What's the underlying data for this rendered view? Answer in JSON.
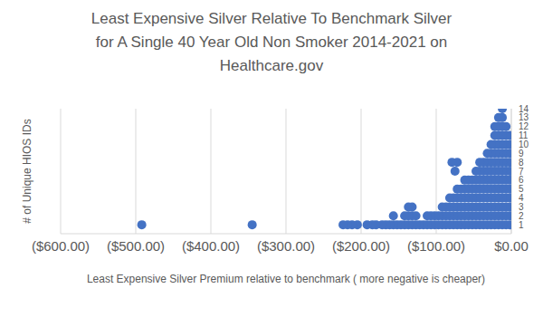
{
  "chart_data": {
    "type": "scatter",
    "title": "Least Expensive Silver Relative To Benchmark Silver for A Single 40 Year Old Non Smoker 2014-2021 on Healthcare.gov",
    "x_label": "Least Expensive Silver Premium relative to benchmark ( more negative is cheaper)",
    "y_label": "# of Unique HIOS IDs",
    "color": "#4472c4",
    "marker": "circle",
    "grid": true,
    "xlim": [
      -600,
      0
    ],
    "xticks": [
      {
        "value": -600,
        "label": "($600.00)"
      },
      {
        "value": -500,
        "label": "($500.00)"
      },
      {
        "value": -400,
        "label": "($400.00)"
      },
      {
        "value": -300,
        "label": "($300.00)"
      },
      {
        "value": -200,
        "label": "($200.00)"
      },
      {
        "value": -100,
        "label": "($100.00)"
      },
      {
        "value": 0,
        "label": "$0.00"
      }
    ],
    "ylim": [
      0,
      14
    ],
    "yticks": [
      1,
      2,
      3,
      4,
      5,
      6,
      7,
      8,
      9,
      10,
      11,
      12,
      13,
      14
    ],
    "x": [
      -2,
      -2,
      -2,
      -2,
      -2,
      -2,
      -2,
      -2,
      -2,
      -2,
      -2,
      -7,
      -7,
      -7,
      -7,
      -7,
      -7,
      -7,
      -7,
      -7,
      -7,
      -7,
      -7,
      -12,
      -12,
      -12,
      -12,
      -12,
      -12,
      -12,
      -12,
      -12,
      -12,
      -12,
      -12,
      -12,
      -12,
      -17,
      -17,
      -17,
      -17,
      -17,
      -17,
      -17,
      -17,
      -17,
      -17,
      -17,
      -17,
      -17,
      -22,
      -22,
      -22,
      -22,
      -22,
      -22,
      -22,
      -22,
      -22,
      -22,
      -22,
      -22,
      -27,
      -27,
      -27,
      -27,
      -27,
      -27,
      -27,
      -27,
      -27,
      -27,
      -32,
      -32,
      -32,
      -32,
      -32,
      -32,
      -32,
      -32,
      -32,
      -37,
      -37,
      -37,
      -37,
      -37,
      -37,
      -37,
      -37,
      -42,
      -42,
      -42,
      -42,
      -42,
      -42,
      -42,
      -42,
      -47,
      -47,
      -47,
      -47,
      -47,
      -47,
      -47,
      -52,
      -52,
      -52,
      -52,
      -52,
      -52,
      -57,
      -57,
      -57,
      -57,
      -57,
      -57,
      -62,
      -62,
      -62,
      -62,
      -62,
      -62,
      -67,
      -67,
      -67,
      -67,
      -67,
      -72,
      -72,
      -72,
      -72,
      -72,
      -77,
      -77,
      -77,
      -77,
      -82,
      -82,
      -82,
      -82,
      -87,
      -87,
      -87,
      -92,
      -92,
      -92,
      -97,
      -97,
      -102,
      -102,
      -107,
      -107,
      -112,
      -112,
      -117,
      -122,
      -127,
      -127,
      -132,
      -132,
      -132,
      -137,
      -137,
      -137,
      -142,
      -142,
      -147,
      -152,
      -157,
      -157,
      -162,
      -167,
      -172,
      -180,
      -185,
      -192,
      -205,
      -212,
      -218,
      -224,
      -345,
      -492,
      -72,
      -79,
      -75
    ],
    "values": [
      1,
      2,
      3,
      4,
      5,
      6,
      7,
      8,
      9,
      10,
      11,
      1,
      2,
      3,
      4,
      5,
      6,
      7,
      8,
      9,
      10,
      11,
      12,
      1,
      2,
      3,
      4,
      5,
      6,
      7,
      8,
      9,
      10,
      11,
      12,
      13,
      14,
      1,
      2,
      3,
      4,
      5,
      6,
      7,
      8,
      9,
      10,
      11,
      12,
      13,
      1,
      2,
      3,
      4,
      5,
      6,
      7,
      8,
      9,
      10,
      11,
      12,
      1,
      2,
      3,
      4,
      5,
      6,
      7,
      8,
      9,
      10,
      1,
      2,
      3,
      4,
      5,
      6,
      7,
      8,
      9,
      1,
      2,
      3,
      4,
      5,
      6,
      7,
      8,
      1,
      2,
      3,
      4,
      5,
      6,
      7,
      8,
      1,
      2,
      3,
      4,
      5,
      6,
      7,
      1,
      2,
      3,
      4,
      5,
      6,
      1,
      2,
      3,
      4,
      5,
      6,
      1,
      2,
      3,
      4,
      5,
      6,
      1,
      2,
      3,
      4,
      5,
      1,
      2,
      3,
      4,
      5,
      1,
      2,
      3,
      4,
      1,
      2,
      3,
      4,
      1,
      2,
      3,
      1,
      2,
      3,
      1,
      2,
      1,
      2,
      1,
      2,
      1,
      2,
      1,
      1,
      1,
      2,
      1,
      2,
      3,
      1,
      2,
      3,
      1,
      2,
      1,
      1,
      1,
      2,
      1,
      1,
      1,
      1,
      1,
      1,
      1,
      1,
      1,
      1,
      1,
      1,
      8,
      8,
      7
    ]
  }
}
